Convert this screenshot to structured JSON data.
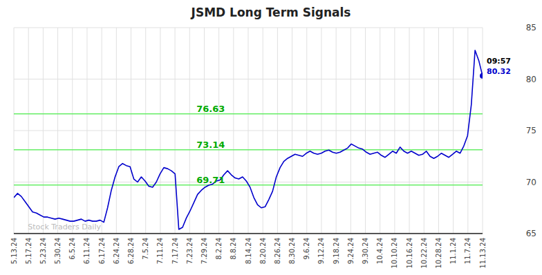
{
  "chart_data": {
    "type": "line",
    "title": "JSMD Long Term Signals",
    "color": "#0000cc",
    "grid": true,
    "xlim": [
      0,
      125
    ],
    "xticks": [
      {
        "value": 0,
        "label": "5.13.24"
      },
      {
        "value": 3.90625,
        "label": "5.17.24"
      },
      {
        "value": 7.8125,
        "label": "5.23.24"
      },
      {
        "value": 11.71875,
        "label": "5.30.24"
      },
      {
        "value": 15.625,
        "label": "6.5.24"
      },
      {
        "value": 19.53125,
        "label": "6.11.24"
      },
      {
        "value": 23.4375,
        "label": "6.17.24"
      },
      {
        "value": 27.34375,
        "label": "6.24.24"
      },
      {
        "value": 31.25,
        "label": "6.28.24"
      },
      {
        "value": 35.15625,
        "label": "7.5.24"
      },
      {
        "value": 39.0625,
        "label": "7.11.24"
      },
      {
        "value": 42.96875,
        "label": "7.17.24"
      },
      {
        "value": 46.875,
        "label": "7.23.24"
      },
      {
        "value": 50.78125,
        "label": "7.29.24"
      },
      {
        "value": 54.6875,
        "label": "8.2.24"
      },
      {
        "value": 58.59375,
        "label": "8.8.24"
      },
      {
        "value": 62.5,
        "label": "8.14.24"
      },
      {
        "value": 66.40625,
        "label": "8.20.24"
      },
      {
        "value": 70.3125,
        "label": "8.26.24"
      },
      {
        "value": 74.21875,
        "label": "8.30.24"
      },
      {
        "value": 78.125,
        "label": "9.6.24"
      },
      {
        "value": 82.03125,
        "label": "9.12.24"
      },
      {
        "value": 85.9375,
        "label": "9.18.24"
      },
      {
        "value": 89.84375,
        "label": "9.24.24"
      },
      {
        "value": 93.75,
        "label": "9.30.24"
      },
      {
        "value": 97.65625,
        "label": "10.4.24"
      },
      {
        "value": 101.5625,
        "label": "10.10.24"
      },
      {
        "value": 105.46875,
        "label": "10.16.24"
      },
      {
        "value": 109.375,
        "label": "10.22.24"
      },
      {
        "value": 113.28125,
        "label": "10.28.24"
      },
      {
        "value": 117.1875,
        "label": "11.1.24"
      },
      {
        "value": 121.09375,
        "label": "11.7.24"
      },
      {
        "value": 125,
        "label": "11.13.24"
      }
    ],
    "ylim": [
      65,
      85
    ],
    "yticks": [
      65,
      70,
      75,
      80,
      85
    ],
    "horizontal_lines": [
      {
        "value": 69.71,
        "color": "#66ee66"
      },
      {
        "value": 73.14,
        "color": "#66ee66"
      },
      {
        "value": 76.63,
        "color": "#66ee66"
      }
    ],
    "annotations": [
      {
        "text": "09:57"
      },
      {
        "text": "80.32",
        "value": 80.32
      }
    ],
    "watermark": "Stock Traders Daily",
    "values": [
      68.5,
      68.9,
      68.6,
      68.1,
      67.6,
      67.1,
      67.0,
      66.8,
      66.6,
      66.6,
      66.5,
      66.4,
      66.5,
      66.4,
      66.3,
      66.2,
      66.2,
      66.3,
      66.4,
      66.2,
      66.3,
      66.2,
      66.2,
      66.3,
      66.1,
      67.5,
      69.2,
      70.5,
      71.5,
      71.8,
      71.6,
      71.5,
      70.3,
      70.0,
      70.5,
      70.1,
      69.6,
      69.5,
      70.0,
      70.8,
      71.4,
      71.3,
      71.1,
      70.8,
      65.4,
      65.6,
      66.5,
      67.2,
      68.0,
      68.8,
      69.2,
      69.5,
      69.7,
      69.8,
      70.1,
      70.2,
      70.7,
      71.1,
      70.7,
      70.4,
      70.3,
      70.5,
      70.1,
      69.5,
      68.5,
      67.8,
      67.5,
      67.6,
      68.3,
      69.1,
      70.5,
      71.4,
      72.0,
      72.3,
      72.5,
      72.7,
      72.6,
      72.5,
      72.8,
      73.0,
      72.8,
      72.7,
      72.8,
      73.0,
      73.1,
      72.9,
      72.8,
      72.9,
      73.1,
      73.3,
      73.7,
      73.5,
      73.3,
      73.2,
      72.9,
      72.7,
      72.8,
      72.9,
      72.6,
      72.4,
      72.7,
      73.0,
      72.8,
      73.4,
      73.0,
      72.8,
      73.0,
      72.8,
      72.6,
      72.7,
      73.0,
      72.5,
      72.3,
      72.5,
      72.8,
      72.6,
      72.4,
      72.7,
      73.0,
      72.8,
      73.5,
      74.5,
      77.5,
      82.8,
      81.8,
      80.32
    ]
  }
}
